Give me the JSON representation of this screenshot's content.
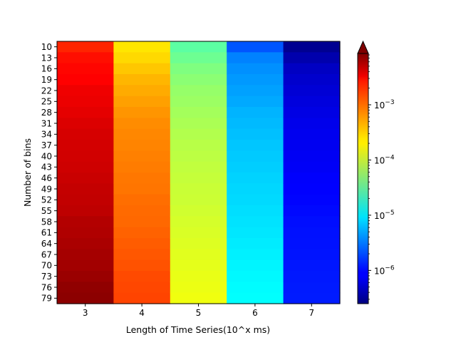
{
  "chart_data": {
    "type": "heatmap",
    "title": "",
    "xlabel": "Length of Time Series(10^x ms)",
    "ylabel": "Number of bins",
    "x_categories": [
      "3",
      "4",
      "5",
      "6",
      "7"
    ],
    "y_categories": [
      "10",
      "13",
      "16",
      "19",
      "22",
      "25",
      "28",
      "31",
      "34",
      "37",
      "40",
      "43",
      "46",
      "49",
      "52",
      "55",
      "58",
      "61",
      "64",
      "67",
      "70",
      "73",
      "76",
      "79"
    ],
    "colorbar": {
      "scale": "log",
      "colormap": "jet",
      "range": [
        2.5e-07,
        0.0085
      ],
      "extend": "max",
      "ticks": [
        {
          "value": 1e-06,
          "mantissa": "10",
          "exponent": "−6"
        },
        {
          "value": 1e-05,
          "mantissa": "10",
          "exponent": "−5"
        },
        {
          "value": 0.0001,
          "mantissa": "10",
          "exponent": "−4"
        },
        {
          "value": 0.001,
          "mantissa": "10",
          "exponent": "−3"
        }
      ]
    },
    "series": [
      {
        "x": "3",
        "values": [
          0.0016,
          0.002,
          0.0022,
          0.0023,
          0.0027,
          0.0028,
          0.003,
          0.0033,
          0.0035,
          0.0036,
          0.0037,
          0.0038,
          0.004,
          0.0042,
          0.0043,
          0.0045,
          0.005,
          0.0052,
          0.0055,
          0.0058,
          0.006,
          0.0065,
          0.0072,
          0.0075
        ]
      },
      {
        "x": "4",
        "values": [
          0.00022,
          0.00025,
          0.0003,
          0.00036,
          0.0004,
          0.00045,
          0.0005,
          0.00055,
          0.00058,
          0.0006,
          0.00062,
          0.00065,
          0.00068,
          0.0007,
          0.00075,
          0.00078,
          0.0008,
          0.00085,
          0.0009,
          0.00095,
          0.001,
          0.00108,
          0.00112,
          0.00115
        ]
      },
      {
        "x": "5",
        "values": [
          3.2e-05,
          3.8e-05,
          4.6e-05,
          5.2e-05,
          5.8e-05,
          6.2e-05,
          6.7e-05,
          7.2e-05,
          7.7e-05,
          8.2e-05,
          8.6e-05,
          9e-05,
          9.4e-05,
          9.8e-05,
          0.0001,
          0.000105,
          0.00011,
          0.000115,
          0.00012,
          0.000125,
          0.00013,
          0.000135,
          0.00014,
          0.000145
        ]
      },
      {
        "x": "6",
        "values": [
          2.2e-06,
          3.5e-06,
          4e-06,
          4.4e-06,
          4.8e-06,
          5.2e-06,
          5.8e-06,
          6.2e-06,
          6.6e-06,
          7e-06,
          7.3e-06,
          7.6e-06,
          8e-06,
          8.3e-06,
          8.6e-06,
          9e-06,
          9.4e-06,
          9.8e-06,
          1.03e-05,
          1.08e-05,
          1.13e-05,
          1.18e-05,
          1.22e-05,
          1.26e-05
        ]
      },
      {
        "x": "7",
        "values": [
          3e-07,
          4e-07,
          5e-07,
          5.5e-07,
          6e-07,
          6.5e-07,
          7e-07,
          7.5e-07,
          7.8e-07,
          8e-07,
          8.2e-07,
          8.5e-07,
          9e-07,
          9.2e-07,
          9.5e-07,
          1e-06,
          1.05e-06,
          1.08e-06,
          1.1e-06,
          1.12e-06,
          1.15e-06,
          1.18e-06,
          1.2e-06,
          1.22e-06
        ]
      }
    ]
  }
}
